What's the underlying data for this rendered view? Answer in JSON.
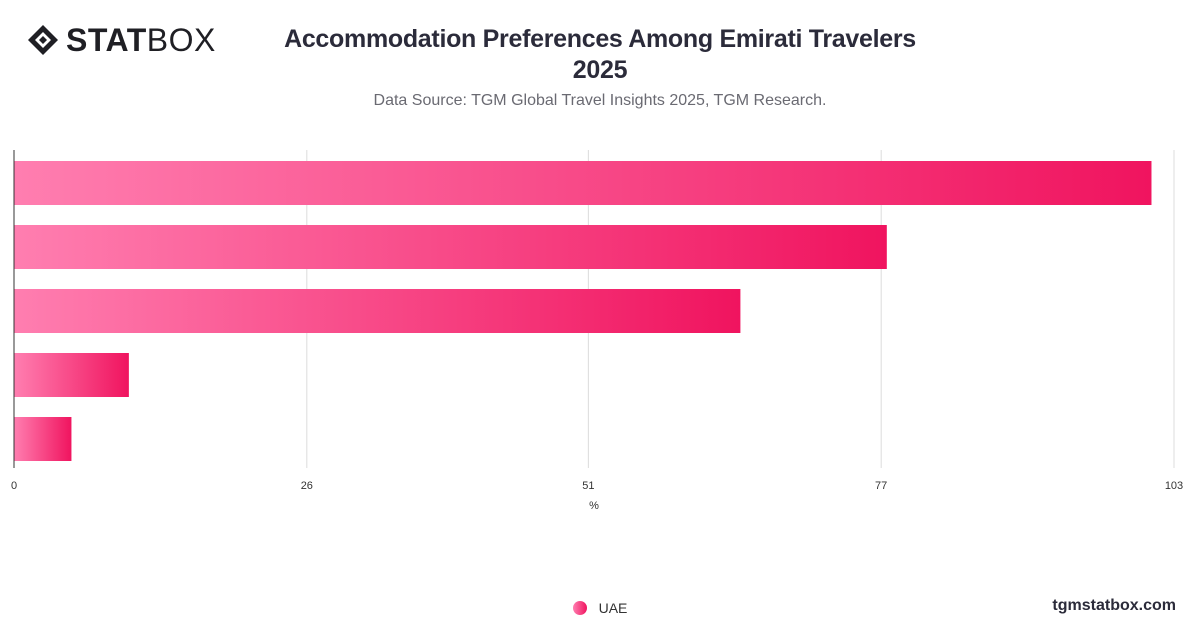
{
  "header": {
    "logo_bold": "STAT",
    "logo_light": "BOX",
    "title_line1": "Accommodation Preferences Among Emirati Travelers",
    "title_line2": "2025",
    "subtitle": "Data Source: TGM Global Travel Insights 2025, TGM Research."
  },
  "footer": {
    "brand": "tgmstatbox.com"
  },
  "colors": {
    "bar_start": "#ff7eb0",
    "bar_end": "#f0145f",
    "grid": "#dcdcdc",
    "axis": "#333333"
  },
  "chart_data": {
    "type": "bar",
    "orientation": "horizontal",
    "xlabel": "%",
    "xlim": [
      0,
      103
    ],
    "xticks": [
      0,
      26,
      51,
      77,
      103
    ],
    "grid": true,
    "legend_position": "bottom-center",
    "series": [
      {
        "name": "UAE",
        "values": [
          101,
          77.5,
          64.5,
          10.2,
          5.1
        ]
      }
    ]
  }
}
